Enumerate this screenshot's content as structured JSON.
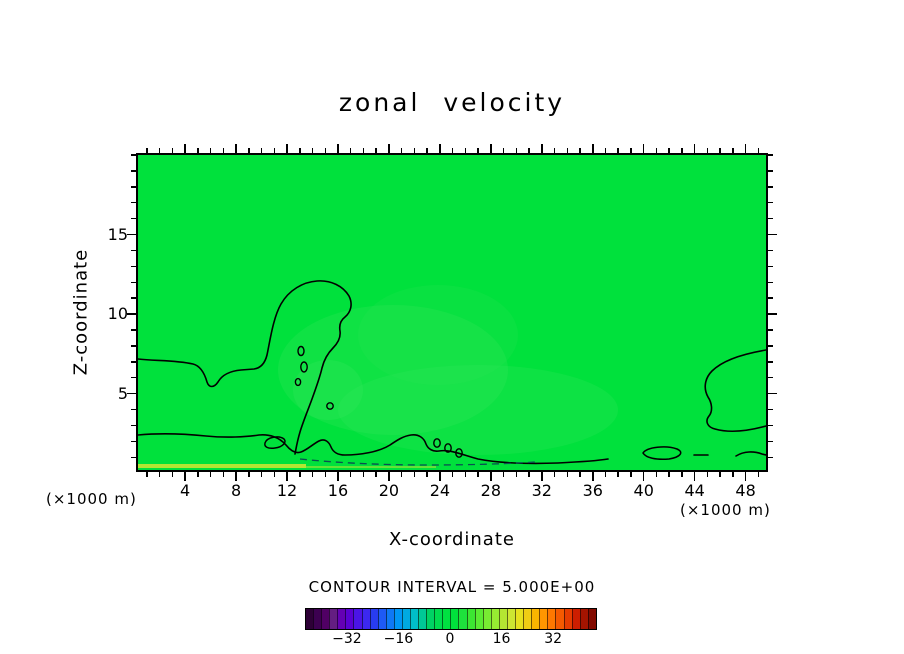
{
  "chart_data": {
    "type": "heatmap",
    "subtype": "filled_contour_cross_section",
    "title": "zonal velocity",
    "xlabel": "X-coordinate",
    "ylabel": "Z-coordinate",
    "x_unit": "(×1000 m)",
    "y_unit": "(×1000 m)",
    "xlim": [
      0.3,
      49.6
    ],
    "ylim": [
      0.2,
      20.0
    ],
    "x_ticks_major": [
      4,
      8,
      12,
      16,
      20,
      24,
      28,
      32,
      36,
      40,
      44,
      48
    ],
    "x_minor_tick_step": 1,
    "y_ticks_major": [
      5,
      10,
      15
    ],
    "y_minor_tick_step": 1,
    "grid": false,
    "contour_interval": 5.0,
    "contour_interval_label": "CONTOUR INTERVAL = 5.000E+00",
    "field_description": "Zonal velocity ≈ 0 (uniform green, 0 to +5 band) over nearly the whole section; a closed 0-contour lobe rises to z≈12 near x≈10–16; a 0-contour hugs the surface (z≈1–2) across most of the domain with several small closed cells; another 0-contour lobe near the right edge spans z≈4–7; a weak negative pocket (dashed contour) lies just above the surface around x≈12–31; a thin slightly-positive (yellow-green) strip lies along the bottom-left surface.",
    "zero_contour_style": "solid black",
    "negative_contour_style": "dashed",
    "colorbar": {
      "ticks": [
        -32,
        -16,
        0,
        16,
        32
      ],
      "vmin": -45,
      "vmax": 45,
      "segment_colors": [
        "#2d0036",
        "#3c0050",
        "#500064",
        "#641e82",
        "#6400b4",
        "#5a00d2",
        "#4b14e6",
        "#3c28f0",
        "#283cf0",
        "#1e5af5",
        "#0f78f5",
        "#0096f5",
        "#00aae1",
        "#00bec8",
        "#00c896",
        "#00d264",
        "#00dc50",
        "#00e141",
        "#00e13c",
        "#1ee13c",
        "#3ce632",
        "#5aeb32",
        "#78eb32",
        "#96eb32",
        "#b4e632",
        "#cde632",
        "#e6e11e",
        "#f0cd14",
        "#fab400",
        "#ff9600",
        "#ff7800",
        "#f55a00",
        "#e63c00",
        "#cd1e00",
        "#a51400",
        "#820a00"
      ]
    }
  },
  "colors": {
    "background": "#ffffff",
    "field_fill": "#00e13c",
    "field_light_patch": "#32e65a",
    "bottom_band": "#c8e632",
    "contour_line": "#000000",
    "negative_contour_dash": "#0a5050",
    "text": "#000000"
  }
}
